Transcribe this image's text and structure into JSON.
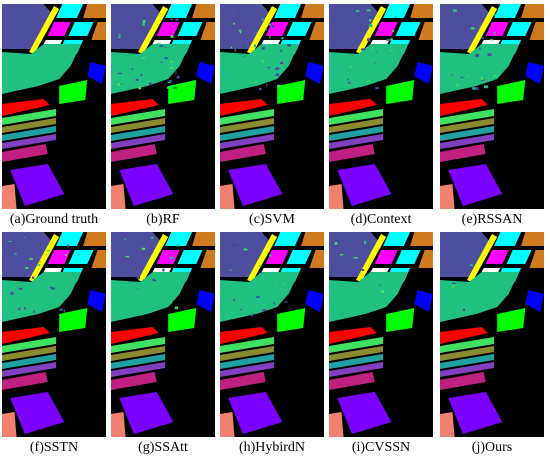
{
  "panels": [
    {
      "caption": "(a)Ground truth"
    },
    {
      "caption": "(b)RF"
    },
    {
      "caption": "(c)SVM"
    },
    {
      "caption": "(d)Context"
    },
    {
      "caption": "(e)RSSAN"
    },
    {
      "caption": "(f)SSTN"
    },
    {
      "caption": "(g)SSAtt"
    },
    {
      "caption": "(h)HybirdN"
    },
    {
      "caption": "(i)CVSSN"
    },
    {
      "caption": "(j)Ours"
    }
  ]
}
